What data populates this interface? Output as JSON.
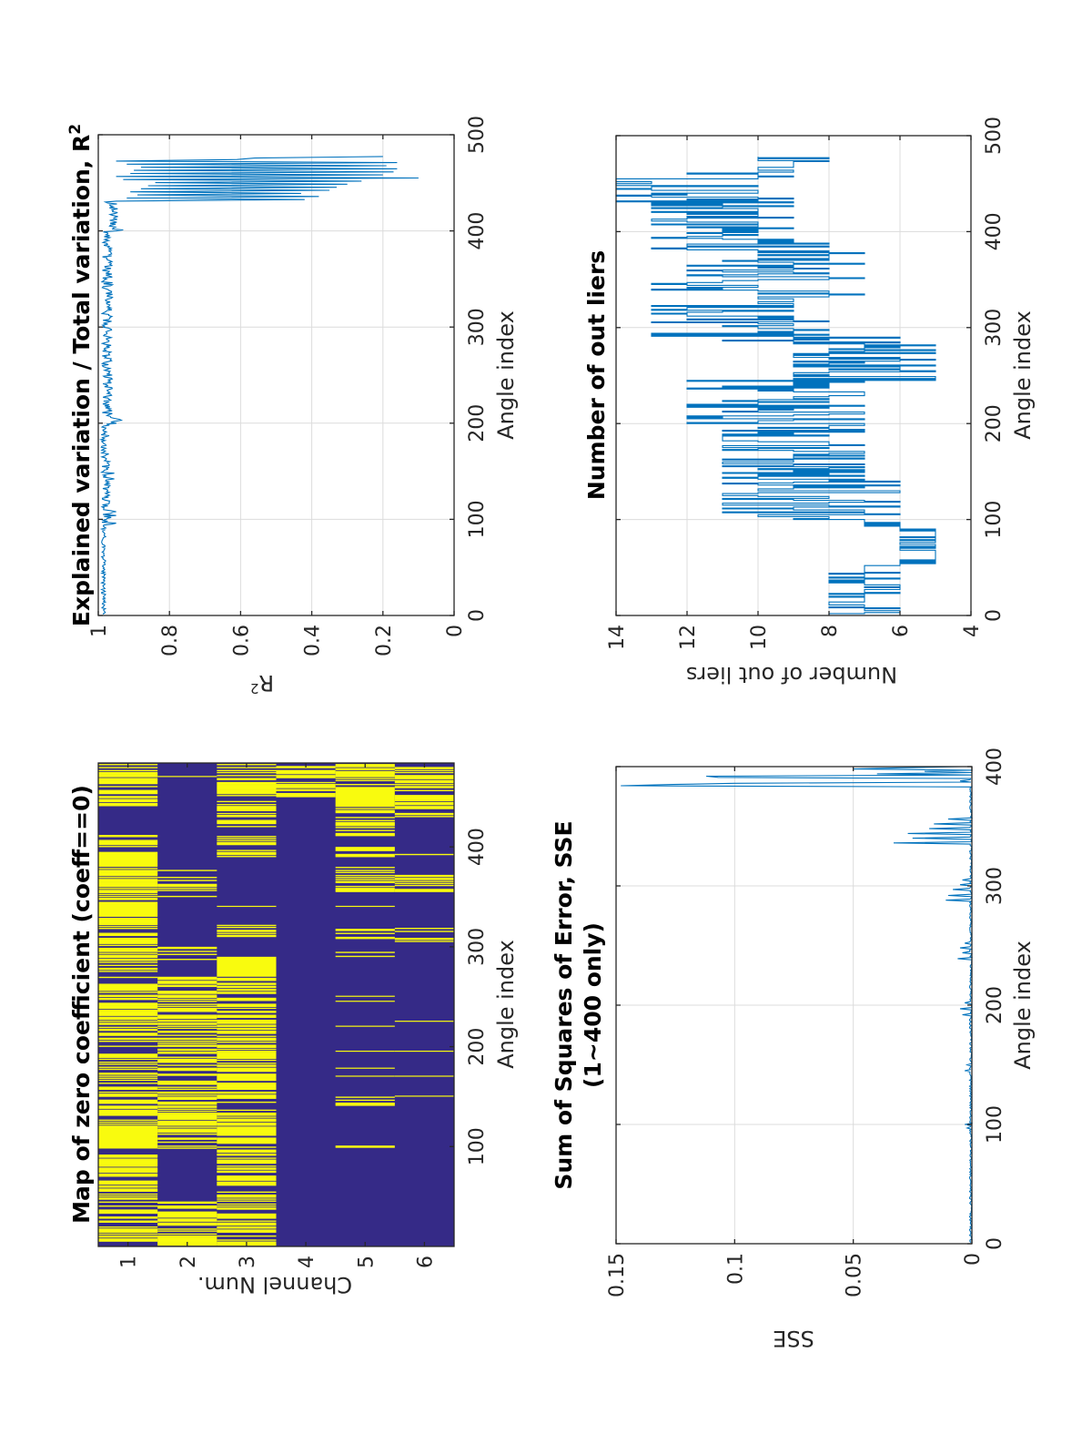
{
  "figure": {
    "orientation": "rotated-90-ccw"
  },
  "chart_data": [
    {
      "id": "r2",
      "type": "line",
      "title": "Explained variation / Total variation, R",
      "title_superscript": "2",
      "xlabel": "Angle index",
      "ylabel": "R",
      "ylabel_superscript": "2",
      "xlim": [
        0,
        500
      ],
      "ylim": [
        0,
        1
      ],
      "yreversed_display": true,
      "xticks": [
        0,
        100,
        200,
        300,
        400,
        500
      ],
      "yticks": [
        1,
        0.8,
        0.6,
        0.4,
        0.2,
        0
      ],
      "ytick_labels": [
        "1",
        "0.8",
        "0.6",
        "0.4",
        "0.2",
        "0"
      ],
      "grid": true,
      "color": "#0072BD",
      "segments": [
        {
          "from": 1,
          "to": 95,
          "base": 0.985,
          "amp": 0.012
        },
        {
          "from": 95,
          "to": 110,
          "base": 0.975,
          "amp": 0.03
        },
        {
          "from": 110,
          "to": 200,
          "base": 0.98,
          "amp": 0.025
        },
        {
          "from": 200,
          "to": 206,
          "base": 0.95,
          "amp": 0.03
        },
        {
          "from": 206,
          "to": 400,
          "base": 0.975,
          "amp": 0.03
        },
        {
          "from": 400,
          "to": 430,
          "base": 0.96,
          "amp": 0.03
        },
        {
          "from": 431,
          "to": 480,
          "base": 0.55,
          "amp": 0.42
        }
      ],
      "spikes": [
        {
          "x": 96,
          "y": 0.95
        },
        {
          "x": 104,
          "y": 0.95
        },
        {
          "x": 108,
          "y": 0.95
        },
        {
          "x": 142,
          "y": 0.955
        },
        {
          "x": 148,
          "y": 0.955
        },
        {
          "x": 203,
          "y": 0.935
        },
        {
          "x": 346,
          "y": 0.96
        },
        {
          "x": 401,
          "y": 0.93
        },
        {
          "x": 430,
          "y": 0.98
        }
      ],
      "tail_values": [
        0.95,
        0.42,
        0.92,
        0.38,
        0.89,
        0.43,
        0.91,
        0.35,
        0.88,
        0.33,
        0.86,
        0.3,
        0.84,
        0.26,
        0.93,
        0.1,
        0.95,
        0.2,
        0.91,
        0.17,
        0.9,
        0.16,
        0.88,
        0.19,
        0.92,
        0.16,
        0.95,
        0.61,
        0.56,
        0.2
      ]
    },
    {
      "id": "outliers",
      "type": "line",
      "title": "Number of out liers",
      "xlabel": "Angle index",
      "ylabel": "Number of out liers",
      "xlim": [
        0,
        500
      ],
      "ylim": [
        4,
        14
      ],
      "xticks": [
        0,
        100,
        200,
        300,
        400,
        500
      ],
      "yticks": [
        14,
        12,
        10,
        8,
        6,
        4
      ],
      "ytick_labels": [
        "14",
        "12",
        "10",
        "8",
        "6",
        "4"
      ],
      "grid": true,
      "color": "#0072BD",
      "blocks": [
        {
          "from": 1,
          "to": 45,
          "values": [
            7,
            8,
            6,
            7,
            8,
            7,
            6,
            8,
            7
          ]
        },
        {
          "from": 45,
          "to": 52,
          "values": [
            7
          ]
        },
        {
          "from": 52,
          "to": 92,
          "values": [
            5,
            6,
            5,
            6,
            5,
            6,
            5
          ]
        },
        {
          "from": 92,
          "to": 100,
          "values": [
            7,
            6,
            7
          ]
        },
        {
          "from": 100,
          "to": 145,
          "values": [
            10,
            11,
            8,
            6,
            9,
            7,
            6,
            10,
            8,
            6,
            9,
            7
          ]
        },
        {
          "from": 145,
          "to": 195,
          "values": [
            9,
            11,
            10,
            7,
            9,
            8,
            10,
            7,
            11,
            8,
            7,
            9
          ]
        },
        {
          "from": 195,
          "to": 245,
          "values": [
            12,
            10,
            9,
            12,
            7,
            10,
            8,
            11,
            9,
            7,
            10,
            8
          ]
        },
        {
          "from": 245,
          "to": 290,
          "values": [
            11,
            9,
            6,
            8,
            5,
            7,
            9,
            5,
            6,
            8,
            5,
            9
          ]
        },
        {
          "from": 290,
          "to": 330,
          "values": [
            13,
            9,
            12,
            10,
            13,
            9,
            11,
            10,
            8,
            10,
            9
          ]
        },
        {
          "from": 330,
          "to": 390,
          "values": [
            7,
            10,
            12,
            11,
            13,
            8,
            11,
            9,
            8,
            12,
            10,
            8
          ]
        },
        {
          "from": 390,
          "to": 430,
          "values": [
            13,
            10,
            12,
            11,
            10,
            12,
            9,
            11,
            10
          ]
        },
        {
          "from": 430,
          "to": 455,
          "values": [
            13,
            14,
            12,
            10,
            13,
            9,
            14,
            10
          ]
        },
        {
          "from": 455,
          "to": 478,
          "values": [
            10,
            9,
            10,
            8,
            9,
            10,
            12,
            9
          ]
        }
      ]
    },
    {
      "id": "zero-map",
      "type": "heatmap",
      "title": "Map of zero coefficient (coeff==0)",
      "xlabel": "Channel Num.",
      "ylabel": "Angle index",
      "channels": [
        "1",
        "2",
        "3",
        "4",
        "5",
        "6"
      ],
      "angle_range": [
        1,
        484
      ],
      "yticks": [
        100,
        200,
        300,
        400
      ],
      "colors": {
        "zero": "#F9FB0E",
        "nonzero": "#352A87"
      },
      "yellow_bands": {
        "1": [
          [
            1,
            10,
            "dense"
          ],
          [
            10,
            45,
            "dense"
          ],
          [
            45,
            98,
            "dense"
          ],
          [
            98,
            120,
            "solid"
          ],
          [
            120,
            270,
            "dense"
          ],
          [
            275,
            295,
            "dense"
          ],
          [
            295,
            330,
            "dense"
          ],
          [
            330,
            345,
            "solid"
          ],
          [
            345,
            380,
            "dense"
          ],
          [
            380,
            395,
            "solid"
          ],
          [
            400,
            412,
            "dense"
          ],
          [
            440,
            484,
            "dense"
          ]
        ],
        "2": [
          [
            1,
            46,
            "dense"
          ],
          [
            98,
            270,
            "dense"
          ],
          [
            285,
            300,
            "dense"
          ],
          [
            345,
            380,
            "sparse"
          ],
          [
            470,
            471,
            "solid"
          ]
        ],
        "3": [
          [
            1,
            98,
            "dense"
          ],
          [
            98,
            230,
            "dense"
          ],
          [
            230,
            270,
            "dense"
          ],
          [
            270,
            290,
            "solid"
          ],
          [
            310,
            322,
            "dense"
          ],
          [
            340,
            341,
            "solid"
          ],
          [
            390,
            412,
            "dense"
          ],
          [
            420,
            484,
            "dense"
          ]
        ],
        "4": [
          [
            450,
            484,
            "dense"
          ]
        ],
        "5": [
          [
            95,
            103,
            "sparse"
          ],
          [
            140,
            150,
            "sparse"
          ],
          [
            170,
            171,
            "solid"
          ],
          [
            178,
            179,
            "solid"
          ],
          [
            195,
            196,
            "solid"
          ],
          [
            220,
            221,
            "solid"
          ],
          [
            245,
            246,
            "solid"
          ],
          [
            250,
            251,
            "solid"
          ],
          [
            285,
            300,
            "sparse"
          ],
          [
            305,
            320,
            "sparse"
          ],
          [
            340,
            341,
            "solid"
          ],
          [
            355,
            380,
            "dense"
          ],
          [
            390,
            400,
            "dense"
          ],
          [
            410,
            440,
            "dense"
          ],
          [
            440,
            460,
            "solid"
          ],
          [
            460,
            484,
            "dense"
          ]
        ],
        "6": [
          [
            150,
            151,
            "solid"
          ],
          [
            170,
            171,
            "solid"
          ],
          [
            195,
            196,
            "solid"
          ],
          [
            225,
            226,
            "solid"
          ],
          [
            305,
            320,
            "sparse"
          ],
          [
            355,
            375,
            "dense"
          ],
          [
            390,
            395,
            "sparse"
          ],
          [
            430,
            484,
            "dense"
          ]
        ]
      }
    },
    {
      "id": "sse",
      "type": "line",
      "title_line1": "Sum of Squares of Error, SSE",
      "title_line2": "(1~400 only)",
      "xlabel": "Angle index",
      "ylabel": "SSE",
      "xlim": [
        0,
        400
      ],
      "ylim": [
        0,
        0.15
      ],
      "xticks": [
        0,
        100,
        200,
        300,
        400
      ],
      "yticks": [
        0.15,
        0.1,
        0.05,
        0
      ],
      "ytick_labels": [
        "0.15",
        "0.1",
        "0.05",
        "0"
      ],
      "grid": true,
      "color": "#0072BD",
      "spikes": [
        {
          "x": 97,
          "y": 0.002
        },
        {
          "x": 100,
          "y": 0.003
        },
        {
          "x": 145,
          "y": 0.003
        },
        {
          "x": 150,
          "y": 0.002
        },
        {
          "x": 192,
          "y": 0.004
        },
        {
          "x": 197,
          "y": 0.005
        },
        {
          "x": 202,
          "y": 0.003
        },
        {
          "x": 239,
          "y": 0.006
        },
        {
          "x": 244,
          "y": 0.004
        },
        {
          "x": 248,
          "y": 0.005
        },
        {
          "x": 252,
          "y": 0.003
        },
        {
          "x": 288,
          "y": 0.011
        },
        {
          "x": 292,
          "y": 0.01
        },
        {
          "x": 297,
          "y": 0.008
        },
        {
          "x": 301,
          "y": 0.005
        },
        {
          "x": 305,
          "y": 0.004
        },
        {
          "x": 336,
          "y": 0.033
        },
        {
          "x": 340,
          "y": 0.025
        },
        {
          "x": 344,
          "y": 0.027
        },
        {
          "x": 348,
          "y": 0.018
        },
        {
          "x": 352,
          "y": 0.016
        },
        {
          "x": 356,
          "y": 0.01
        },
        {
          "x": 384,
          "y": 0.148
        },
        {
          "x": 385,
          "y": 0.126
        },
        {
          "x": 386,
          "y": 0.1
        },
        {
          "x": 388,
          "y": 0.005
        },
        {
          "x": 391,
          "y": 0.107
        },
        {
          "x": 392,
          "y": 0.112
        },
        {
          "x": 394,
          "y": 0.04
        },
        {
          "x": 396,
          "y": 0.02
        },
        {
          "x": 398,
          "y": 0.05
        },
        {
          "x": 399,
          "y": 0.03
        },
        {
          "x": 400,
          "y": 0.004
        }
      ],
      "baseline": 0.001
    }
  ]
}
